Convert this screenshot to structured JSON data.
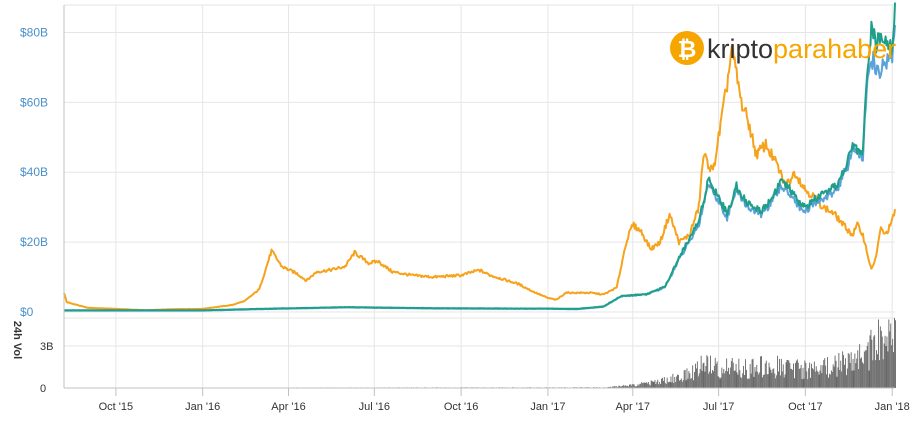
{
  "logo": {
    "part1": "kripto",
    "part2": "parahaber",
    "coin_symbol": "₿",
    "color_dark": "#333333",
    "color_accent": "#f7a600"
  },
  "chart_data": {
    "type": "line",
    "y_axis": {
      "ticks": [
        0,
        20,
        40,
        60,
        80
      ],
      "tick_labels": [
        "$0",
        "$20B",
        "$40B",
        "$60B",
        "$80B"
      ],
      "ylim": [
        0,
        87
      ],
      "unit": "billion USD"
    },
    "x_axis": {
      "tick_labels": [
        "Oct '15",
        "Jan '16",
        "Apr '16",
        "Jul '16",
        "Oct '16",
        "Jan '17",
        "Apr '17",
        "Jul '17",
        "Oct '17",
        "Jan '18"
      ],
      "tick_dates": [
        "2015-10-01",
        "2016-01-01",
        "2016-04-01",
        "2016-07-01",
        "2016-10-01",
        "2017-01-01",
        "2017-04-01",
        "2017-07-01",
        "2017-10-01",
        "2018-01-01"
      ],
      "range": [
        "2015-08-07",
        "2018-01-04"
      ]
    },
    "grid": true,
    "series": [
      {
        "color": "#f7a21b",
        "points": [
          [
            "2015-08-07",
            5.5
          ],
          [
            "2015-08-10",
            2.8
          ],
          [
            "2015-09-01",
            1.2
          ],
          [
            "2015-10-01",
            0.9
          ],
          [
            "2015-11-01",
            0.5
          ],
          [
            "2015-12-01",
            0.8
          ],
          [
            "2016-01-01",
            0.9
          ],
          [
            "2016-02-01",
            2.0
          ],
          [
            "2016-02-15",
            3.2
          ],
          [
            "2016-03-01",
            6.5
          ],
          [
            "2016-03-14",
            17.5
          ],
          [
            "2016-03-25",
            13.0
          ],
          [
            "2016-04-10",
            11.0
          ],
          [
            "2016-04-20",
            9.0
          ],
          [
            "2016-05-01",
            11.5
          ],
          [
            "2016-05-15",
            12.0
          ],
          [
            "2016-05-31",
            13.0
          ],
          [
            "2016-06-10",
            17.0
          ],
          [
            "2016-06-25",
            14.0
          ],
          [
            "2016-07-05",
            14.5
          ],
          [
            "2016-07-20",
            11.5
          ],
          [
            "2016-08-10",
            10.5
          ],
          [
            "2016-09-01",
            10.0
          ],
          [
            "2016-10-01",
            10.5
          ],
          [
            "2016-10-20",
            12.0
          ],
          [
            "2016-11-01",
            10.5
          ],
          [
            "2016-12-01",
            8.0
          ],
          [
            "2016-12-15",
            6.0
          ],
          [
            "2017-01-01",
            4.0
          ],
          [
            "2017-01-10",
            3.5
          ],
          [
            "2017-01-20",
            5.5
          ],
          [
            "2017-02-15",
            5.5
          ],
          [
            "2017-03-01",
            5.0
          ],
          [
            "2017-03-15",
            7.0
          ],
          [
            "2017-03-25",
            20.0
          ],
          [
            "2017-04-01",
            25.0
          ],
          [
            "2017-04-10",
            23.0
          ],
          [
            "2017-04-20",
            18.0
          ],
          [
            "2017-04-30",
            20.0
          ],
          [
            "2017-05-10",
            28.0
          ],
          [
            "2017-05-20",
            20.0
          ],
          [
            "2017-05-31",
            22.0
          ],
          [
            "2017-06-10",
            30.0
          ],
          [
            "2017-06-15",
            45.0
          ],
          [
            "2017-06-25",
            40.0
          ],
          [
            "2017-07-01",
            50.0
          ],
          [
            "2017-07-10",
            65.0
          ],
          [
            "2017-07-15",
            75.5
          ],
          [
            "2017-07-20",
            68.0
          ],
          [
            "2017-07-25",
            60.0
          ],
          [
            "2017-08-01",
            55.0
          ],
          [
            "2017-08-10",
            45.0
          ],
          [
            "2017-08-20",
            48.0
          ],
          [
            "2017-09-01",
            42.0
          ],
          [
            "2017-09-10",
            36.0
          ],
          [
            "2017-09-20",
            40.0
          ],
          [
            "2017-10-01",
            35.0
          ],
          [
            "2017-10-10",
            33.0
          ],
          [
            "2017-10-20",
            30.0
          ],
          [
            "2017-11-01",
            28.0
          ],
          [
            "2017-11-10",
            25.0
          ],
          [
            "2017-11-20",
            22.0
          ],
          [
            "2017-11-25",
            25.0
          ],
          [
            "2017-12-01",
            22.0
          ],
          [
            "2017-12-10",
            12.0
          ],
          [
            "2017-12-15",
            16.0
          ],
          [
            "2017-12-20",
            24.0
          ],
          [
            "2017-12-25",
            22.0
          ],
          [
            "2018-01-01",
            26.0
          ],
          [
            "2018-01-04",
            29.0
          ]
        ]
      },
      {
        "color": "#5aa3d8",
        "points": [
          [
            "2015-08-07",
            0.4
          ],
          [
            "2016-01-01",
            0.4
          ],
          [
            "2016-03-01",
            0.8
          ],
          [
            "2016-06-01",
            1.3
          ],
          [
            "2016-09-01",
            1.0
          ],
          [
            "2016-12-01",
            0.9
          ],
          [
            "2017-01-01",
            0.9
          ],
          [
            "2017-02-01",
            0.8
          ],
          [
            "2017-03-01",
            1.5
          ],
          [
            "2017-03-20",
            4.5
          ],
          [
            "2017-04-15",
            5.0
          ],
          [
            "2017-05-05",
            7.0
          ],
          [
            "2017-05-20",
            15.0
          ],
          [
            "2017-05-31",
            20.0
          ],
          [
            "2017-06-10",
            25.0
          ],
          [
            "2017-06-20",
            37.0
          ],
          [
            "2017-07-01",
            32.0
          ],
          [
            "2017-07-10",
            27.0
          ],
          [
            "2017-07-20",
            35.0
          ],
          [
            "2017-08-01",
            30.0
          ],
          [
            "2017-08-15",
            28.0
          ],
          [
            "2017-08-25",
            31.0
          ],
          [
            "2017-09-05",
            36.0
          ],
          [
            "2017-09-15",
            34.0
          ],
          [
            "2017-09-25",
            30.0
          ],
          [
            "2017-10-01",
            29.0
          ],
          [
            "2017-10-15",
            32.0
          ],
          [
            "2017-10-25",
            33.0
          ],
          [
            "2017-11-05",
            36.0
          ],
          [
            "2017-11-15",
            42.0
          ],
          [
            "2017-11-20",
            47.0
          ],
          [
            "2017-12-01",
            44.0
          ],
          [
            "2017-12-05",
            65.0
          ],
          [
            "2017-12-12",
            72.0
          ],
          [
            "2017-12-18",
            68.0
          ],
          [
            "2017-12-25",
            72.0
          ],
          [
            "2018-01-01",
            73.0
          ],
          [
            "2018-01-04",
            84.0
          ]
        ]
      },
      {
        "color": "#1f9e89",
        "points": [
          [
            "2015-08-07",
            0.5
          ],
          [
            "2016-01-01",
            0.5
          ],
          [
            "2016-03-01",
            0.9
          ],
          [
            "2016-06-01",
            1.4
          ],
          [
            "2016-09-01",
            1.1
          ],
          [
            "2016-12-01",
            1.0
          ],
          [
            "2017-01-01",
            1.0
          ],
          [
            "2017-02-01",
            0.9
          ],
          [
            "2017-03-01",
            1.6
          ],
          [
            "2017-03-20",
            4.6
          ],
          [
            "2017-04-15",
            5.1
          ],
          [
            "2017-05-05",
            7.2
          ],
          [
            "2017-05-20",
            15.5
          ],
          [
            "2017-05-31",
            21.0
          ],
          [
            "2017-06-10",
            26.0
          ],
          [
            "2017-06-20",
            38.0
          ],
          [
            "2017-07-01",
            33.0
          ],
          [
            "2017-07-10",
            28.0
          ],
          [
            "2017-07-20",
            36.0
          ],
          [
            "2017-08-01",
            31.0
          ],
          [
            "2017-08-15",
            29.0
          ],
          [
            "2017-08-25",
            32.0
          ],
          [
            "2017-09-05",
            37.5
          ],
          [
            "2017-09-15",
            35.0
          ],
          [
            "2017-09-25",
            31.0
          ],
          [
            "2017-10-01",
            30.0
          ],
          [
            "2017-10-15",
            33.0
          ],
          [
            "2017-10-25",
            34.0
          ],
          [
            "2017-11-05",
            37.0
          ],
          [
            "2017-11-15",
            43.0
          ],
          [
            "2017-11-20",
            48.0
          ],
          [
            "2017-12-01",
            45.0
          ],
          [
            "2017-12-05",
            68.0
          ],
          [
            "2017-12-10",
            82.0
          ],
          [
            "2017-12-15",
            76.0
          ],
          [
            "2017-12-22",
            80.0
          ],
          [
            "2018-01-01",
            76.0
          ],
          [
            "2018-01-04",
            87.0
          ]
        ]
      }
    ],
    "volume": {
      "ylabel": "24h Vol",
      "tick_labels": [
        "0",
        "3B"
      ],
      "ticks": [
        0,
        3
      ],
      "ylim": [
        0,
        5
      ],
      "unit": "billion USD",
      "color": "#666666",
      "profile": [
        [
          "2015-08-07",
          0.02
        ],
        [
          "2017-03-01",
          0.05
        ],
        [
          "2017-04-01",
          0.25
        ],
        [
          "2017-05-01",
          0.6
        ],
        [
          "2017-06-01",
          1.2
        ],
        [
          "2017-06-15",
          2.3
        ],
        [
          "2017-07-01",
          1.7
        ],
        [
          "2017-08-01",
          1.8
        ],
        [
          "2017-09-01",
          1.9
        ],
        [
          "2017-10-01",
          1.6
        ],
        [
          "2017-11-01",
          2.0
        ],
        [
          "2017-11-20",
          2.5
        ],
        [
          "2017-12-01",
          3.0
        ],
        [
          "2017-12-15",
          4.0
        ],
        [
          "2018-01-04",
          4.8
        ]
      ]
    }
  }
}
